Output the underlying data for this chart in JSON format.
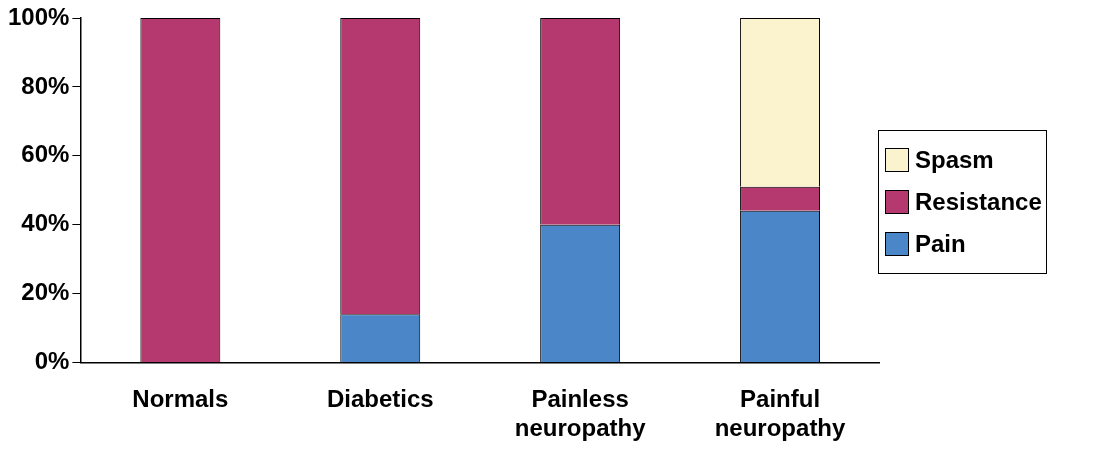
{
  "chart_data": {
    "type": "bar",
    "stacked": true,
    "categories": [
      "Normals",
      "Diabetics",
      "Painless neuropathy",
      "Painful neuropathy"
    ],
    "series": [
      {
        "name": "Pain",
        "color": "#4a86c8",
        "values": [
          0,
          14,
          40,
          44
        ]
      },
      {
        "name": "Resistance",
        "color": "#b5396f",
        "values": [
          100,
          86,
          60,
          7
        ]
      },
      {
        "name": "Spasm",
        "color": "#faf3cd",
        "values": [
          0,
          0,
          0,
          49
        ]
      }
    ],
    "ylim": [
      0,
      100
    ],
    "yticks": [
      {
        "value": 0,
        "label": "0%"
      },
      {
        "value": 20,
        "label": "20%"
      },
      {
        "value": 40,
        "label": "40%"
      },
      {
        "value": 60,
        "label": "60%"
      },
      {
        "value": 80,
        "label": "80%"
      },
      {
        "value": 100,
        "label": "100%"
      }
    ],
    "grid": false,
    "legend": "right"
  }
}
